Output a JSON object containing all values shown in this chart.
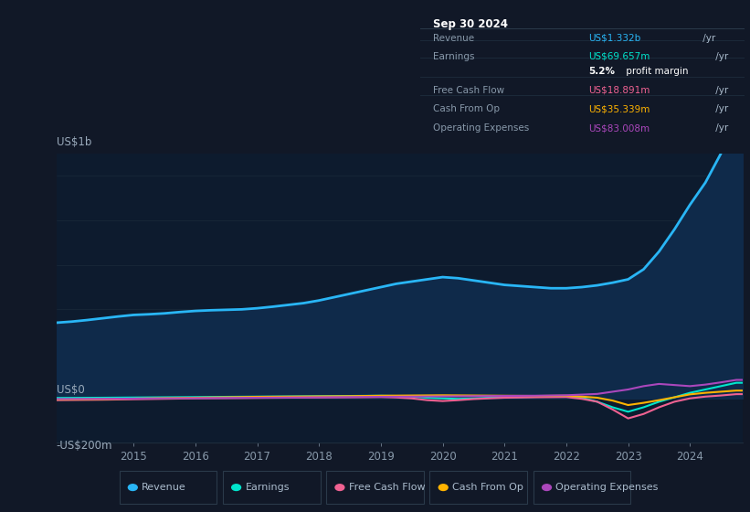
{
  "bg_color": "#111827",
  "chart_bg_color": "#0d1b2e",
  "title_box_bg": "#080d14",
  "ylabel_top": "US$1b",
  "ylabel_zero": "US$0",
  "ylabel_bottom": "-US$200m",
  "info_box": {
    "date": "Sep 30 2024",
    "rows": [
      {
        "label": "Revenue",
        "value": "US$1.332b",
        "suffix": "/yr",
        "value_color": "#29b6f6"
      },
      {
        "label": "Earnings",
        "value": "US$69.657m",
        "suffix": "/yr",
        "value_color": "#00e5cc"
      },
      {
        "label": "",
        "value": "5.2%",
        "suffix": " profit margin",
        "value_color": "#ffffff",
        "bold": true
      },
      {
        "label": "Free Cash Flow",
        "value": "US$18.891m",
        "suffix": "/yr",
        "value_color": "#f06292"
      },
      {
        "label": "Cash From Op",
        "value": "US$35.339m",
        "suffix": "/yr",
        "value_color": "#ffb300"
      },
      {
        "label": "Operating Expenses",
        "value": "US$83.008m",
        "suffix": "/yr",
        "value_color": "#ab47bc"
      }
    ]
  },
  "legend": [
    {
      "label": "Revenue",
      "color": "#29b6f6"
    },
    {
      "label": "Earnings",
      "color": "#00e5cc"
    },
    {
      "label": "Free Cash Flow",
      "color": "#f06292"
    },
    {
      "label": "Cash From Op",
      "color": "#ffb300"
    },
    {
      "label": "Operating Expenses",
      "color": "#ab47bc"
    }
  ],
  "x_ticks": [
    2015,
    2016,
    2017,
    2018,
    2019,
    2020,
    2021,
    2022,
    2023,
    2024
  ],
  "ylim": [
    -200,
    1100
  ],
  "xlim": [
    2013.75,
    2024.85
  ],
  "revenue": {
    "x": [
      2013.75,
      2014.0,
      2014.25,
      2014.5,
      2014.75,
      2015.0,
      2015.25,
      2015.5,
      2015.75,
      2016.0,
      2016.25,
      2016.5,
      2016.75,
      2017.0,
      2017.25,
      2017.5,
      2017.75,
      2018.0,
      2018.25,
      2018.5,
      2018.75,
      2019.0,
      2019.25,
      2019.5,
      2019.75,
      2020.0,
      2020.25,
      2020.5,
      2020.75,
      2021.0,
      2021.25,
      2021.5,
      2021.75,
      2022.0,
      2022.25,
      2022.5,
      2022.75,
      2023.0,
      2023.25,
      2023.5,
      2023.75,
      2024.0,
      2024.25,
      2024.5,
      2024.75,
      2024.85
    ],
    "y": [
      340,
      345,
      352,
      360,
      368,
      375,
      378,
      382,
      388,
      393,
      396,
      398,
      400,
      405,
      412,
      420,
      428,
      440,
      455,
      470,
      485,
      500,
      515,
      525,
      535,
      545,
      540,
      530,
      520,
      510,
      505,
      500,
      495,
      495,
      500,
      508,
      520,
      535,
      580,
      660,
      760,
      870,
      970,
      1100,
      1332,
      1332
    ],
    "color": "#29b6f6",
    "fill_color": "#0f2a4a",
    "linewidth": 2.0
  },
  "earnings": {
    "x": [
      2013.75,
      2014.5,
      2015.0,
      2015.5,
      2016.0,
      2016.5,
      2017.0,
      2017.5,
      2018.0,
      2018.5,
      2019.0,
      2019.25,
      2019.5,
      2019.75,
      2020.0,
      2020.25,
      2020.5,
      2020.75,
      2021.0,
      2021.5,
      2022.0,
      2022.25,
      2022.5,
      2022.75,
      2023.0,
      2023.25,
      2023.5,
      2023.75,
      2024.0,
      2024.25,
      2024.5,
      2024.75,
      2024.85
    ],
    "y": [
      2,
      3,
      4,
      5,
      6,
      7,
      8,
      9,
      10,
      11,
      12,
      11,
      8,
      3,
      0,
      -2,
      0,
      3,
      5,
      7,
      10,
      3,
      -15,
      -40,
      -60,
      -40,
      -15,
      5,
      25,
      40,
      55,
      70,
      70
    ],
    "color": "#00e5cc",
    "linewidth": 1.5
  },
  "free_cash_flow": {
    "x": [
      2013.75,
      2014.5,
      2015.0,
      2015.5,
      2016.0,
      2016.5,
      2017.0,
      2017.5,
      2018.0,
      2018.5,
      2019.0,
      2019.25,
      2019.5,
      2019.75,
      2020.0,
      2020.25,
      2020.5,
      2020.75,
      2021.0,
      2021.5,
      2022.0,
      2022.25,
      2022.5,
      2022.75,
      2023.0,
      2023.25,
      2023.5,
      2023.75,
      2024.0,
      2024.25,
      2024.5,
      2024.75,
      2024.85
    ],
    "y": [
      -8,
      -6,
      -4,
      -2,
      0,
      1,
      2,
      3,
      4,
      5,
      6,
      4,
      0,
      -8,
      -12,
      -8,
      -3,
      0,
      3,
      5,
      6,
      -2,
      -15,
      -50,
      -90,
      -70,
      -40,
      -15,
      0,
      8,
      13,
      19,
      19
    ],
    "color": "#f06292",
    "linewidth": 1.5
  },
  "cash_from_op": {
    "x": [
      2013.75,
      2014.5,
      2015.0,
      2015.5,
      2016.0,
      2016.5,
      2017.0,
      2017.5,
      2018.0,
      2018.5,
      2019.0,
      2019.5,
      2020.0,
      2020.5,
      2021.0,
      2021.5,
      2022.0,
      2022.25,
      2022.5,
      2022.75,
      2023.0,
      2023.25,
      2023.5,
      2023.75,
      2024.0,
      2024.25,
      2024.5,
      2024.75,
      2024.85
    ],
    "y": [
      -5,
      -3,
      -1,
      1,
      3,
      5,
      7,
      8,
      9,
      10,
      12,
      13,
      14,
      13,
      12,
      11,
      12,
      8,
      3,
      -10,
      -30,
      -20,
      -8,
      5,
      18,
      25,
      30,
      35,
      35
    ],
    "color": "#ffb300",
    "linewidth": 1.5
  },
  "operating_expenses": {
    "x": [
      2013.75,
      2014.5,
      2015.0,
      2015.5,
      2016.0,
      2016.5,
      2017.0,
      2017.5,
      2018.0,
      2018.5,
      2019.0,
      2019.5,
      2020.0,
      2020.5,
      2021.0,
      2021.5,
      2022.0,
      2022.5,
      2023.0,
      2023.25,
      2023.5,
      2023.75,
      2024.0,
      2024.25,
      2024.5,
      2024.75,
      2024.85
    ],
    "y": [
      -3,
      -2,
      -1,
      0,
      1,
      2,
      3,
      4,
      5,
      6,
      7,
      8,
      9,
      10,
      11,
      12,
      14,
      20,
      40,
      55,
      65,
      60,
      55,
      62,
      72,
      83,
      83
    ],
    "color": "#ab47bc",
    "linewidth": 1.5
  },
  "grid_color": "#1e2d3d",
  "zero_line_color": "#2a3f55",
  "axis_text_color": "#8899aa",
  "label_text_color": "#9aaabb"
}
